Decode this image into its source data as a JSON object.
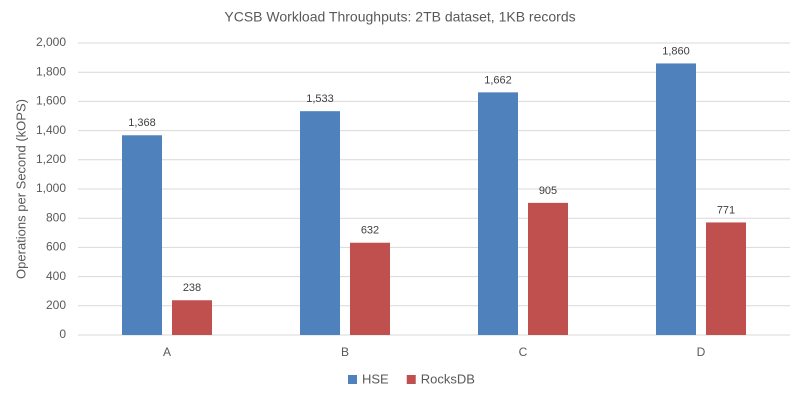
{
  "chart_data": {
    "type": "bar",
    "title": "YCSB Workload Throughputs: 2TB dataset, 1KB records",
    "y_label": "Operations per Second (kOPS)",
    "categories": [
      "A",
      "B",
      "C",
      "D"
    ],
    "series": [
      {
        "name": "HSE",
        "color": "#4f81bd",
        "values": [
          1368,
          1533,
          1662,
          1860
        ],
        "value_labels": [
          "1,368",
          "1,533",
          "1,662",
          "1,860"
        ]
      },
      {
        "name": "RocksDB",
        "color": "#c0504d",
        "values": [
          238,
          632,
          905,
          771
        ]
      }
    ],
    "ylim": [
      0,
      2000
    ],
    "yticks": [
      0,
      200,
      400,
      600,
      800,
      {
        "value": 1000,
        "label": "1,000"
      },
      {
        "value": 1200,
        "label": "1,200"
      },
      {
        "value": 1400,
        "label": "1,400"
      },
      {
        "value": 1600,
        "label": "1,600"
      },
      {
        "value": 1800,
        "label": "1,800"
      },
      {
        "value": 2000,
        "label": "2,000"
      }
    ],
    "grid": true,
    "legend": "bottom"
  }
}
